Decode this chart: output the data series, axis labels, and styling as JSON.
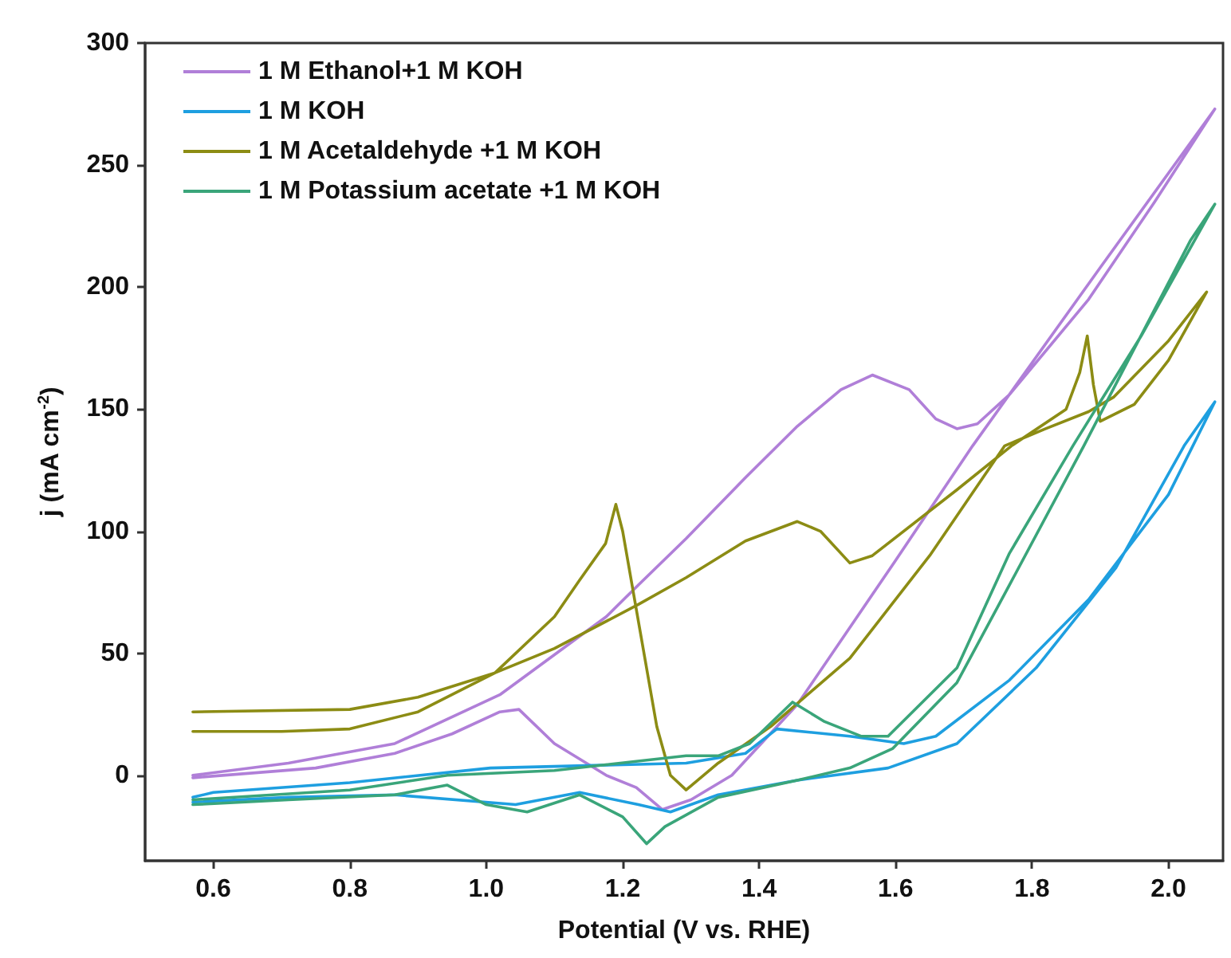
{
  "chart_data": {
    "type": "line",
    "xlabel": "Potential (V vs. RHE)",
    "ylabel": "j (mA cm$^{-2}$)",
    "xlim": [
      0.5,
      2.08
    ],
    "ylim": [
      -35,
      300
    ],
    "xticks": [
      0.6,
      0.8,
      {
        "value": 1,
        "label": "1.0"
      },
      1.2,
      1.4,
      1.6,
      1.8,
      {
        "value": 2,
        "label": "2.0"
      }
    ],
    "yticks": [
      0,
      50,
      100,
      150,
      200,
      250,
      300
    ],
    "grid": false,
    "legend": "top left",
    "marker": "none",
    "line_style": "solid",
    "series": [
      {
        "name": "1 M Ethanol+1 M KOH",
        "color": "#b07fd8",
        "x": [
          0.57,
          0.71,
          0.866,
          1.02,
          1.176,
          1.223,
          1.293,
          1.38,
          1.456,
          1.52,
          1.566,
          1.62,
          1.659,
          1.69,
          1.72,
          1.767,
          1.883,
          1.98,
          2.068,
          1.9,
          1.713,
          1.6,
          1.456,
          1.36,
          1.3,
          1.258,
          1.22,
          1.176,
          1.1,
          1.048,
          1.02,
          0.95,
          0.866,
          0.75,
          0.57
        ],
        "values": [
          0,
          5,
          13,
          33,
          65,
          78,
          97,
          122,
          143,
          158,
          164,
          158,
          146,
          142,
          144,
          156,
          195,
          235,
          273,
          208,
          135,
          88,
          29,
          0,
          -10,
          -14,
          -5,
          0,
          13,
          27,
          26,
          17,
          9,
          3,
          -1
        ]
      },
      {
        "name": "1 M KOH",
        "color": "#1e9fe0",
        "x": [
          0.57,
          0.6,
          0.8,
          1.006,
          1.293,
          1.38,
          1.426,
          1.533,
          1.612,
          1.659,
          1.767,
          1.883,
          2.0,
          2.068,
          2.023,
          1.923,
          1.806,
          1.69,
          1.589,
          1.456,
          1.34,
          1.27,
          1.223,
          1.137,
          1.043,
          0.866,
          0.71,
          0.57
        ],
        "values": [
          -9,
          -7,
          -3,
          3,
          5,
          9,
          19,
          16,
          13,
          16,
          39,
          72,
          115,
          153,
          135,
          85,
          44,
          13,
          3,
          -2,
          -8,
          -15,
          -12,
          -7,
          -12,
          -8,
          -9,
          -11
        ]
      },
      {
        "name": "1 M Acetaldehyde +1 M KOH",
        "color": "#8c8c14",
        "x": [
          0.57,
          0.8,
          0.9,
          1.013,
          1.1,
          1.223,
          1.293,
          1.38,
          1.456,
          1.49,
          1.533,
          1.566,
          1.69,
          1.77,
          1.85,
          1.87,
          1.881,
          1.89,
          1.9,
          1.95,
          2.0,
          2.056,
          2.0,
          1.92,
          1.883,
          1.82,
          1.76,
          1.65,
          1.533,
          1.417,
          1.34,
          1.293,
          1.27,
          1.25,
          1.225,
          1.2,
          1.19,
          1.175,
          1.137,
          1.1,
          1.013,
          0.9,
          0.8,
          0.7,
          0.57
        ],
        "values": [
          26,
          27,
          32,
          42,
          52,
          70,
          81,
          96,
          104,
          100,
          87,
          90,
          117,
          135,
          150,
          165,
          180,
          160,
          145,
          152,
          170,
          198,
          178,
          155,
          149,
          142,
          135,
          90,
          48,
          20,
          5,
          -6,
          0,
          20,
          60,
          100,
          111,
          95,
          80,
          65,
          42,
          26,
          19,
          18,
          18
        ]
      },
      {
        "name": "1 M Potassium acetate +1 M KOH",
        "color": "#3aa57a",
        "x": [
          0.57,
          0.8,
          0.943,
          1.1,
          1.293,
          1.34,
          1.386,
          1.449,
          1.496,
          1.55,
          1.589,
          1.69,
          1.767,
          1.86,
          1.96,
          2.068,
          2.032,
          1.876,
          1.767,
          1.69,
          1.596,
          1.533,
          1.456,
          1.34,
          1.262,
          1.235,
          1.2,
          1.137,
          1.06,
          1.0,
          0.943,
          0.866,
          0.71,
          0.57
        ],
        "values": [
          -10,
          -6,
          0,
          2,
          8,
          8,
          13,
          30,
          22,
          16,
          16,
          44,
          91,
          135,
          180,
          234,
          219,
          135,
          78,
          38,
          11,
          3,
          -2,
          -9,
          -21,
          -28,
          -17,
          -8,
          -15,
          -12,
          -4,
          -8,
          -10,
          -12
        ]
      }
    ]
  }
}
